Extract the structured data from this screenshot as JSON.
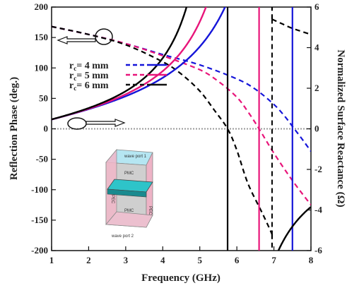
{
  "chart_data": {
    "type": "line",
    "xlabel": "Frequency (GHz)",
    "ylabel": "Reflection Phase (deg.)",
    "y2label": "Normalized Surface Reactance (Ω)",
    "xlim": [
      1,
      8
    ],
    "ylim": [
      -200,
      200
    ],
    "y2lim": [
      -6,
      6
    ],
    "xticks": [
      "1",
      "2",
      "3",
      "4",
      "5",
      "6",
      "7",
      "8"
    ],
    "yticks": [
      "-200",
      "-150",
      "-100",
      "-50",
      "0",
      "50",
      "100",
      "150",
      "200"
    ],
    "y2ticks": [
      "-6",
      "-4",
      "-2",
      "0",
      "2",
      "4",
      "6"
    ],
    "grid": false,
    "legend_position": "upper-left",
    "zero_line": true,
    "legend": [
      {
        "label_main": "r",
        "label_sub": "c",
        "label_rest": "= 4 mm",
        "color": "#1515d9"
      },
      {
        "label_main": "r",
        "label_sub": "c",
        "label_rest": "= 5 mm",
        "color": "#e8157a"
      },
      {
        "label_main": "r",
        "label_sub": "c",
        "label_rest": "= 6 mm",
        "color": "#000000"
      }
    ],
    "series": [
      {
        "radius_mm": 4,
        "color": "#1515d9",
        "quantity": "reflection phase",
        "axis": "left",
        "style": "dashed",
        "resonance_ghz": 7.55,
        "x": [
          1,
          2,
          3,
          4,
          5,
          6,
          6.5,
          7,
          7.3,
          7.55,
          7.8,
          8
        ],
        "y": [
          168,
          155,
          140,
          122,
          105,
          82,
          65,
          40,
          20,
          0,
          -20,
          -37
        ]
      },
      {
        "radius_mm": 5,
        "color": "#e8157a",
        "quantity": "reflection phase",
        "axis": "left",
        "style": "dashed",
        "resonance_ghz": 6.6,
        "x": [
          1,
          2,
          3,
          4,
          5,
          5.5,
          6,
          6.3,
          6.6,
          7,
          7.5,
          8
        ],
        "y": [
          168,
          155,
          140,
          120,
          97,
          78,
          52,
          28,
          0,
          -40,
          -85,
          -125
        ]
      },
      {
        "radius_mm": 6,
        "color": "#000000",
        "quantity": "reflection phase",
        "axis": "left",
        "style": "dashed",
        "resonance_ghz": 5.75,
        "x": [
          1,
          2,
          3,
          4,
          4.5,
          5,
          5.4,
          5.75,
          6,
          6.3,
          6.7,
          6.95
        ],
        "y": [
          168,
          155,
          138,
          110,
          90,
          62,
          30,
          0,
          -35,
          -90,
          -140,
          -173
        ]
      },
      {
        "radius_mm": 4,
        "color": "#1515d9",
        "quantity": "surface reactance",
        "axis": "right",
        "style": "solid",
        "pole_ghz": 7.5
      },
      {
        "radius_mm": 5,
        "color": "#e8157a",
        "quantity": "surface reactance",
        "axis": "right",
        "style": "solid",
        "pole_ghz": 6.6
      },
      {
        "radius_mm": 6,
        "color": "#000000",
        "quantity": "surface reactance",
        "axis": "right",
        "style": "solid",
        "pole_ghz": 5.75
      }
    ],
    "inset_labels": {
      "port1": "wave port 1",
      "port2": "wave port 2",
      "pmc_top": "PMC",
      "pmc_bottom": "PMC",
      "pec_left": "PEC",
      "pec_right": "PEC"
    }
  }
}
